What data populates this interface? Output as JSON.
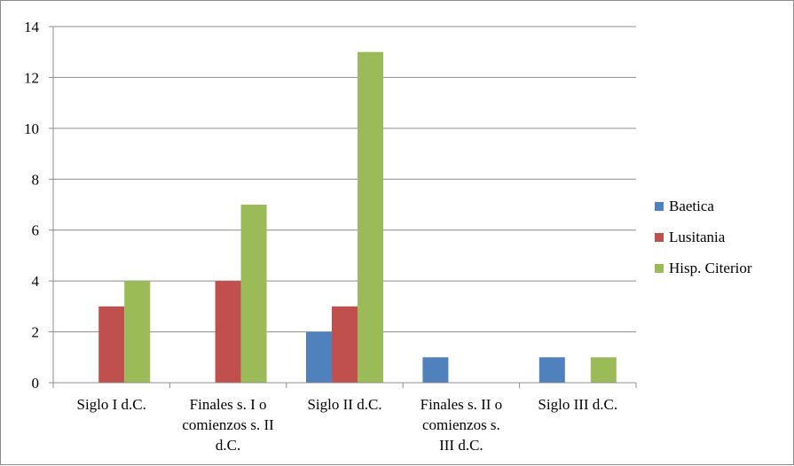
{
  "chart_data": {
    "type": "bar",
    "categories": [
      [
        "Siglo I d.C."
      ],
      [
        "Finales s. I o",
        "comienzos s. II",
        "d.C."
      ],
      [
        "Siglo II d.C."
      ],
      [
        "Finales s. II o",
        "comienzos s.",
        "III d.C."
      ],
      [
        "Siglo III d.C."
      ]
    ],
    "series": [
      {
        "name": "Baetica",
        "color": "#4f81bd",
        "values": [
          0,
          0,
          2,
          1,
          1
        ]
      },
      {
        "name": "Lusitania",
        "color": "#c0504d",
        "values": [
          3,
          4,
          3,
          0,
          0
        ]
      },
      {
        "name": "Hisp. Citerior",
        "color": "#9bbb59",
        "values": [
          4,
          7,
          13,
          0,
          1
        ]
      }
    ],
    "yticks": [
      "0",
      "2",
      "4",
      "6",
      "8",
      "10",
      "12",
      "14"
    ],
    "ylim": [
      0,
      14
    ],
    "grid": true,
    "legend_position": "right"
  }
}
